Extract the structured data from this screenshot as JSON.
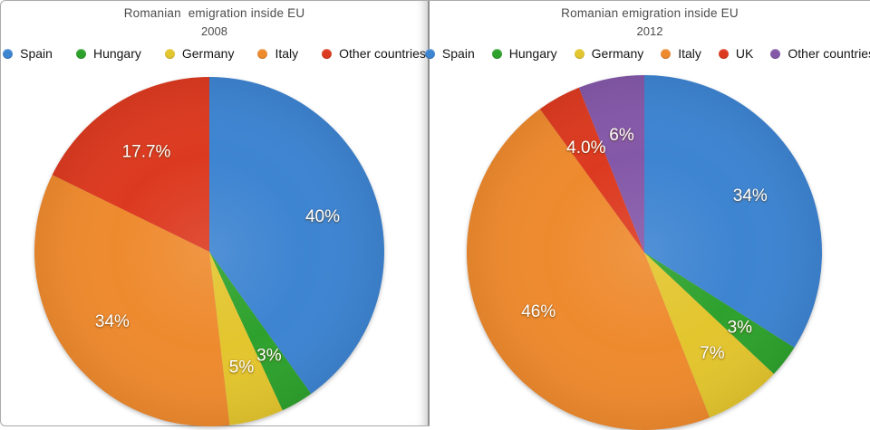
{
  "page": {
    "background": "#ffffff",
    "panel_border_color": "#ababab",
    "divider_color": "#8f8f8f"
  },
  "chart_data": [
    {
      "type": "pie",
      "title": "Romanian  emigration inside EU",
      "subtitle": "2008",
      "legend_position": "top",
      "direction": "clockwise",
      "start_angle_deg": 0,
      "label_color": "#ffffff",
      "series": [
        {
          "label": "Spain",
          "value": 40,
          "display": "40%",
          "color": "#3D84D1"
        },
        {
          "label": "Hungary",
          "value": 3,
          "display": "3%",
          "color": "#2EA12D"
        },
        {
          "label": "Germany",
          "value": 5,
          "display": "5%",
          "color": "#E3C52E"
        },
        {
          "label": "Italy",
          "value": 34,
          "display": "34%",
          "color": "#EE8A2E"
        },
        {
          "label": "Other countries",
          "value": 17.7,
          "display": "17.7%",
          "color": "#DC3A20"
        }
      ]
    },
    {
      "type": "pie",
      "title": "Romanian emigration inside EU",
      "subtitle": "2012",
      "legend_position": "top",
      "direction": "clockwise",
      "start_angle_deg": 0,
      "label_color": "#ffffff",
      "series": [
        {
          "label": "Spain",
          "value": 34,
          "display": "34%",
          "color": "#3D84D1"
        },
        {
          "label": "Hungary",
          "value": 3,
          "display": "3%",
          "color": "#2EA12D"
        },
        {
          "label": "Germany",
          "value": 7,
          "display": "7%",
          "color": "#E3C52E"
        },
        {
          "label": "Italy",
          "value": 46,
          "display": "46%",
          "color": "#EE8A2E"
        },
        {
          "label": "UK",
          "value": 4,
          "display": "4.0%",
          "color": "#DC3A20"
        },
        {
          "label": "Other countries",
          "value": 6,
          "display": "6%",
          "color": "#8458A8"
        }
      ]
    }
  ]
}
